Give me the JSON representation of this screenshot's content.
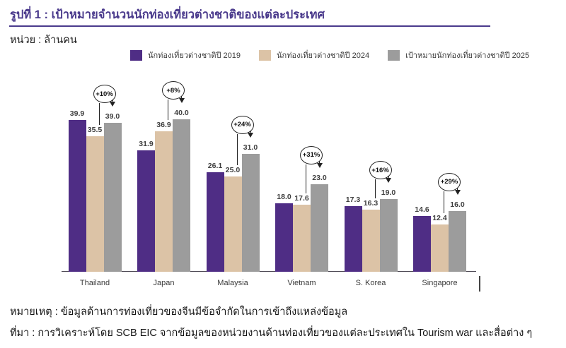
{
  "title": "รูปที่ 1 : เป้าหมายจำนวนนักท่องเที่ยวต่างชาติของแต่ละประเทศ",
  "unit_label": "หน่วย : ล้านคน",
  "notes": {
    "note_line": "หมายเหตุ : ข้อมูลด้านการท่องเที่ยวของจีนมีข้อจำกัดในการเข้าถึงแหล่งข้อมูล",
    "source_line": "ที่มา : การวิเคราะห์โดย SCB EIC จากข้อมูลของหน่วยงานด้านท่องเที่ยวของแต่ละประเทศใน Tourism war และสื่อต่าง ๆ"
  },
  "colors": {
    "title_purple": "#4A3A8C",
    "bar_purple": "#4F2D85",
    "bar_tan": "#DCC3A6",
    "bar_gray": "#9C9C9C",
    "axis": "#4a4652"
  },
  "chart_data": {
    "type": "bar",
    "title": "เป้าหมายจำนวนนักท่องเที่ยวต่างชาติของแต่ละประเทศ",
    "unit": "ล้านคน",
    "categories": [
      "Thailand",
      "Japan",
      "Malaysia",
      "Vietnam",
      "S. Korea",
      "Singapore"
    ],
    "series": [
      {
        "name": "นักท่องเที่ยวต่างชาติปี 2019",
        "color": "#4F2D85",
        "values": [
          39.9,
          31.9,
          26.1,
          18.0,
          17.3,
          14.6
        ]
      },
      {
        "name": "นักท่องเที่ยวต่างชาติปี 2024",
        "color": "#DCC3A6",
        "values": [
          35.5,
          36.9,
          25.0,
          17.6,
          16.3,
          12.4
        ]
      },
      {
        "name": "เป้าหมายนักท่องเที่ยวต่างชาติปี 2025",
        "color": "#9C9C9C",
        "values": [
          39.0,
          40.0,
          31.0,
          23.0,
          19.0,
          16.0
        ]
      }
    ],
    "growth_annotations": [
      "+10%",
      "+8%",
      "+24%",
      "+31%",
      "+16%",
      "+29%"
    ],
    "ylim": [
      0,
      40
    ],
    "grid": false,
    "legend_position": "top",
    "value_labels_shown": true
  }
}
